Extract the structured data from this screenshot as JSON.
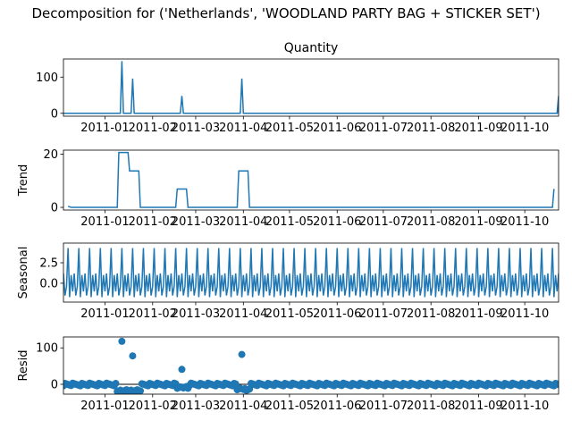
{
  "figure": {
    "title": "Decomposition for ('Netherlands', 'WOODLAND PARTY BAG + STICKER SET')"
  },
  "colors": {
    "series": "#1f77b4",
    "axis": "#000000",
    "background": "#ffffff"
  },
  "chart_data": [
    {
      "type": "line",
      "title": "Quantity",
      "ylabel": "",
      "x_range": [
        "2010-12-05",
        "2011-10-23"
      ],
      "ylim": [
        -8,
        150
      ],
      "yticks": [
        0,
        100
      ],
      "xticks": [
        "2011-01",
        "2011-02",
        "2011-03",
        "2011-04",
        "2011-05",
        "2011-06",
        "2011-07",
        "2011-08",
        "2011-09",
        "2011-10"
      ],
      "baseline": 0,
      "spikes": [
        {
          "date": "2011-01-12",
          "value": 144
        },
        {
          "date": "2011-01-19",
          "value": 96
        },
        {
          "date": "2011-02-20",
          "value": 48
        },
        {
          "date": "2011-03-31",
          "value": 96
        },
        {
          "date": "2011-10-23",
          "value": 48
        }
      ]
    },
    {
      "type": "line",
      "title": "",
      "ylabel": "Trend",
      "x_range": [
        "2010-12-05",
        "2011-10-23"
      ],
      "ylim": [
        -1,
        21.5
      ],
      "yticks": [
        0,
        20
      ],
      "xticks": [
        "2011-01",
        "2011-02",
        "2011-03",
        "2011-04",
        "2011-05",
        "2011-06",
        "2011-07",
        "2011-08",
        "2011-09",
        "2011-10"
      ],
      "points": [
        [
          "2010-12-08",
          0.4
        ],
        [
          "2010-12-10",
          0
        ],
        [
          "2011-01-09",
          0
        ],
        [
          "2011-01-10",
          20.6
        ],
        [
          "2011-01-16",
          20.6
        ],
        [
          "2011-01-17",
          13.7
        ],
        [
          "2011-01-23",
          13.7
        ],
        [
          "2011-01-24",
          0
        ],
        [
          "2011-02-16",
          0
        ],
        [
          "2011-02-17",
          6.9
        ],
        [
          "2011-02-23",
          6.9
        ],
        [
          "2011-02-24",
          0
        ],
        [
          "2011-03-28",
          0
        ],
        [
          "2011-03-29",
          13.7
        ],
        [
          "2011-04-04",
          13.7
        ],
        [
          "2011-04-05",
          0
        ],
        [
          "2011-10-19",
          0
        ],
        [
          "2011-10-20",
          6.9
        ]
      ]
    },
    {
      "type": "line",
      "title": "",
      "ylabel": "Seasonal",
      "x_range": [
        "2010-12-05",
        "2011-10-23"
      ],
      "ylim": [
        -2.3,
        4.9
      ],
      "yticks": [
        0.0,
        2.5
      ],
      "ytick_labels": [
        "0.0",
        "2.5"
      ],
      "xticks": [
        "2011-01",
        "2011-02",
        "2011-03",
        "2011-04",
        "2011-05",
        "2011-06",
        "2011-07",
        "2011-08",
        "2011-09",
        "2011-10"
      ],
      "period_days": 7,
      "weekly_pattern": [
        1.2,
        -1.5,
        -0.4,
        4.3,
        -1.7,
        1.0,
        -1.0
      ]
    },
    {
      "type": "scatter",
      "title": "",
      "ylabel": "Resid",
      "x_range": [
        "2010-12-05",
        "2011-10-23"
      ],
      "ylim": [
        -27,
        130
      ],
      "yticks": [
        0,
        100
      ],
      "xticks": [
        "2011-01",
        "2011-02",
        "2011-03",
        "2011-04",
        "2011-05",
        "2011-06",
        "2011-07",
        "2011-08",
        "2011-09",
        "2011-10"
      ],
      "baseline": 0,
      "outliers": [
        {
          "date": "2011-01-12",
          "value": 118
        },
        {
          "date": "2011-01-19",
          "value": 78
        },
        {
          "date": "2011-02-20",
          "value": 41
        },
        {
          "date": "2011-03-31",
          "value": 82
        }
      ],
      "dips": [
        {
          "from": "2011-01-09",
          "to": "2011-01-24",
          "value": -17
        },
        {
          "from": "2011-02-17",
          "to": "2011-02-24",
          "value": -9
        },
        {
          "from": "2011-03-28",
          "to": "2011-04-05",
          "value": -14
        }
      ],
      "residual_range": [
        -4,
        3
      ]
    }
  ]
}
